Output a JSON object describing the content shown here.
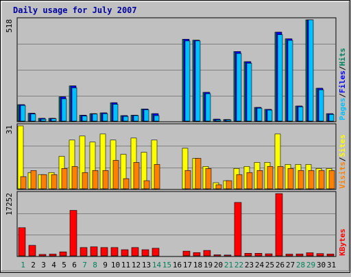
{
  "title": "Daily usage for July 2007",
  "colors": {
    "hits": "#00805C",
    "files": "#0000FF",
    "pages": "#00C0FF",
    "visits": "#FFFF00",
    "sites": "#FF8000",
    "kbytes": "#FF0000",
    "title": "#0000A0",
    "weekend": "#00805C",
    "weekday": "#000000"
  },
  "chart_data": [
    {
      "type": "bar",
      "name": "pages-files-hits",
      "scale_max_label": "518",
      "ylim": [
        0,
        518
      ],
      "legend": [
        "Pages",
        "Files",
        "Hits"
      ],
      "categories": [
        "1",
        "2",
        "3",
        "4",
        "5",
        "6",
        "7",
        "8",
        "9",
        "10",
        "11",
        "12",
        "13",
        "14",
        "15",
        "16",
        "17",
        "18",
        "19",
        "20",
        "21",
        "22",
        "23",
        "24",
        "25",
        "26",
        "27",
        "28",
        "29",
        "30",
        "31"
      ],
      "series": [
        {
          "name": "Hits",
          "values": [
            84,
            40,
            14,
            14,
            124,
            180,
            30,
            38,
            42,
            94,
            28,
            30,
            62,
            38,
            0,
            0,
            419,
            414,
            147,
            10,
            8,
            356,
            304,
            70,
            60,
            455,
            421,
            77,
            518,
            168,
            38
          ]
        },
        {
          "name": "Files",
          "values": [
            84,
            40,
            14,
            14,
            124,
            180,
            30,
            38,
            42,
            94,
            28,
            30,
            62,
            38,
            0,
            0,
            419,
            414,
            147,
            10,
            8,
            356,
            304,
            70,
            60,
            455,
            421,
            77,
            518,
            168,
            38
          ]
        },
        {
          "name": "Pages",
          "values": [
            80,
            36,
            10,
            12,
            114,
            170,
            26,
            36,
            38,
            86,
            24,
            28,
            58,
            28,
            0,
            0,
            410,
            410,
            140,
            6,
            6,
            346,
            296,
            66,
            56,
            442,
            413,
            73,
            518,
            160,
            34
          ]
        }
      ]
    },
    {
      "type": "bar",
      "name": "visits-sites",
      "scale_max_label": "31",
      "ylim": [
        0,
        31
      ],
      "legend": [
        "Visits",
        "Sites"
      ],
      "categories": [
        "1",
        "2",
        "3",
        "4",
        "5",
        "6",
        "7",
        "8",
        "9",
        "10",
        "11",
        "12",
        "13",
        "14",
        "15",
        "16",
        "17",
        "18",
        "19",
        "20",
        "21",
        "22",
        "23",
        "24",
        "25",
        "26",
        "27",
        "28",
        "29",
        "30",
        "31"
      ],
      "series": [
        {
          "name": "Visits",
          "values": [
            31,
            8,
            7,
            8,
            16,
            24,
            26,
            23,
            27,
            24,
            17,
            25,
            18,
            24,
            0,
            0,
            20,
            15,
            11,
            3,
            4,
            10,
            11,
            13,
            13,
            27,
            12,
            12,
            12,
            10,
            10
          ]
        },
        {
          "name": "Sites",
          "values": [
            6,
            9,
            7,
            7,
            10,
            11,
            8,
            9,
            9,
            14,
            5,
            13,
            4,
            12,
            0,
            0,
            9,
            15,
            10,
            2,
            4,
            7,
            8,
            9,
            11,
            11,
            10,
            9,
            9,
            9,
            9
          ]
        }
      ]
    },
    {
      "type": "bar",
      "name": "kbytes",
      "scale_max_label": "17252",
      "ylim": [
        0,
        17252
      ],
      "legend": [
        "KBytes"
      ],
      "categories": [
        "1",
        "2",
        "3",
        "4",
        "5",
        "6",
        "7",
        "8",
        "9",
        "10",
        "11",
        "12",
        "13",
        "14",
        "15",
        "16",
        "17",
        "18",
        "19",
        "20",
        "21",
        "22",
        "23",
        "24",
        "25",
        "26",
        "27",
        "28",
        "29",
        "30",
        "31"
      ],
      "series": [
        {
          "name": "KBytes",
          "values": [
            7800,
            2900,
            390,
            480,
            1100,
            12600,
            2300,
            2500,
            2300,
            2300,
            1700,
            2300,
            1700,
            2100,
            0,
            0,
            1300,
            900,
            1500,
            280,
            220,
            14800,
            700,
            700,
            560,
            17252,
            470,
            520,
            850,
            620,
            500
          ]
        }
      ]
    }
  ],
  "weekend_days": [
    "1",
    "7",
    "8",
    "14",
    "15",
    "21",
    "22",
    "28",
    "29"
  ]
}
